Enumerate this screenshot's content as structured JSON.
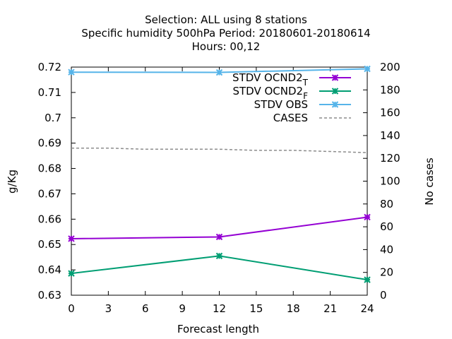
{
  "chart_data": {
    "type": "line",
    "title_lines": [
      "Selection: ALL using     8 stations",
      "Specific humidity 500hPa   Period: 20180601-20180614",
      "Hours:  00,12"
    ],
    "xlabel": "Forecast length",
    "ylabel": "g/Kg",
    "y2label": "No cases",
    "xlim": [
      0,
      24
    ],
    "ylim": [
      0.63,
      0.72
    ],
    "y2lim": [
      0,
      200
    ],
    "xticks": [
      0,
      3,
      6,
      9,
      12,
      15,
      18,
      21,
      24
    ],
    "yticks": [
      0.63,
      0.64,
      0.65,
      0.66,
      0.67,
      0.68,
      0.69,
      0.7,
      0.71,
      0.72
    ],
    "ytick_labels": [
      "0.63",
      "0.64",
      "0.65",
      "0.66",
      "0.67",
      "0.68",
      "0.69",
      "0.7",
      "0.71",
      "0.72"
    ],
    "y2ticks": [
      0,
      20,
      40,
      60,
      80,
      100,
      120,
      140,
      160,
      180,
      200
    ],
    "grid": false,
    "legend_position": "top-right",
    "series": [
      {
        "name": "STDV OCND2",
        "subscript": "T",
        "axis": "y",
        "color": "#9400d3",
        "marker": "x-cross",
        "dashed": false,
        "x": [
          0,
          12,
          24
        ],
        "values": [
          0.6523,
          0.653,
          0.6608
        ]
      },
      {
        "name": "STDV OCND2",
        "subscript": "F",
        "axis": "y",
        "color": "#009e73",
        "marker": "x-cross",
        "dashed": false,
        "x": [
          0,
          12,
          24
        ],
        "values": [
          0.6386,
          0.6455,
          0.6361
        ]
      },
      {
        "name": "STDV OBS",
        "subscript": "",
        "axis": "y",
        "color": "#56b4e9",
        "marker": "x-cross",
        "dashed": false,
        "x": [
          0,
          12,
          24
        ],
        "values": [
          0.718,
          0.7179,
          0.7193
        ]
      },
      {
        "name": "CASES",
        "subscript": "",
        "axis": "y2",
        "color": "#8c8c8c",
        "marker": "none",
        "dashed": true,
        "x": [
          0,
          3,
          6,
          9,
          12,
          15,
          18,
          21,
          24
        ],
        "values": [
          129,
          129,
          128,
          128,
          128,
          127,
          127,
          126,
          125
        ]
      }
    ]
  }
}
